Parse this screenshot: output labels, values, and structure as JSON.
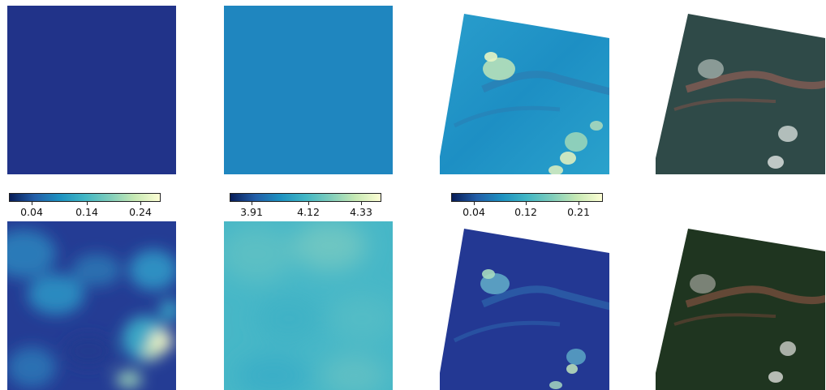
{
  "colorbars": [
    {
      "ticks": [
        "0.04",
        "0.14",
        "0.24"
      ]
    },
    {
      "ticks": [
        "3.91",
        "4.12",
        "4.33"
      ]
    },
    {
      "ticks": [
        "0.04",
        "0.12",
        "0.21"
      ]
    }
  ],
  "colors": {
    "cmap_dark": "#1f2f86",
    "cmap_mid": "#1f87bf",
    "cmap_light": "#7ccbbf",
    "cmap_pale": "#fdfed4",
    "background": "#ffffff"
  }
}
